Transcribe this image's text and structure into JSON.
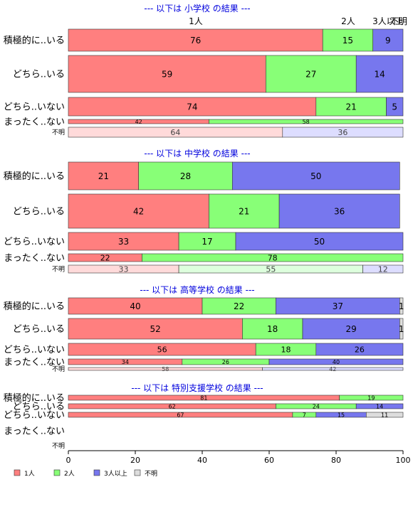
{
  "colors": {
    "one": "#FF7F7F",
    "two": "#88FF77",
    "three": "#7777EE",
    "unknown": "#DDDDDD",
    "title": "#0000DD",
    "one_light": "#FFDADA",
    "two_light": "#DDFFDD",
    "three_light": "#DDDDFF",
    "unknown_light": "#EEEEEE"
  },
  "chart_data": {
    "type": "bar",
    "orientation": "horizontal",
    "stacked": true,
    "xlim": [
      0,
      100
    ],
    "xticks": [
      "0",
      "20",
      "40",
      "60",
      "80",
      "100"
    ],
    "header_labels": [
      "1人",
      "2人",
      "3人以上",
      "不明"
    ],
    "legend": {
      "placement": "bottom-left",
      "items": [
        "1人",
        "2人",
        "3人以上",
        "不明"
      ]
    },
    "row_labels": [
      "積極的に..いる",
      "どちら..いる",
      "どちら..いない",
      "まったく..ない",
      "不明"
    ],
    "panels": [
      {
        "title": "--- 以下は 小学校 の結果 ---",
        "rows": [
          {
            "label": "積極的に..いる",
            "values": [
              76,
              15,
              9,
              0
            ]
          },
          {
            "label": "どちら..いる",
            "values": [
              59,
              27,
              14,
              0
            ]
          },
          {
            "label": "どちら..いない",
            "values": [
              74,
              21,
              5,
              0
            ]
          },
          {
            "label": "まったく..ない",
            "values": [
              42,
              58,
              0,
              0
            ]
          },
          {
            "label": "不明",
            "values": [
              64,
              0,
              36,
              0
            ]
          }
        ]
      },
      {
        "title": "--- 以下は 中学校 の結果 ---",
        "rows": [
          {
            "label": "積極的に..いる",
            "values": [
              21,
              28,
              50,
              0
            ]
          },
          {
            "label": "どちら..いる",
            "values": [
              42,
              21,
              36,
              0
            ]
          },
          {
            "label": "どちら..いない",
            "values": [
              33,
              17,
              50,
              0
            ]
          },
          {
            "label": "まったく..ない",
            "values": [
              22,
              78,
              0,
              0
            ]
          },
          {
            "label": "不明",
            "values": [
              33,
              55,
              12,
              0
            ]
          }
        ]
      },
      {
        "title": "--- 以下は 高等学校 の結果 ---",
        "rows": [
          {
            "label": "積極的に..いる",
            "values": [
              40,
              22,
              37,
              1
            ]
          },
          {
            "label": "どちら..いる",
            "values": [
              52,
              18,
              29,
              1
            ]
          },
          {
            "label": "どちら..いない",
            "values": [
              56,
              18,
              26,
              0
            ]
          },
          {
            "label": "まったく..ない",
            "values": [
              34,
              26,
              40,
              0
            ]
          },
          {
            "label": "不明",
            "values": [
              58,
              0,
              42,
              0
            ]
          }
        ]
      },
      {
        "title": "--- 以下は 特別支援学校 の結果 ---",
        "rows": [
          {
            "label": "積極的に..いる",
            "values": [
              81,
              19,
              0,
              0
            ]
          },
          {
            "label": "どちら..いる",
            "values": [
              62,
              24,
              14,
              0
            ]
          },
          {
            "label": "どちら..いない",
            "values": [
              67,
              7,
              15,
              11
            ]
          },
          {
            "label": "まったく..ない",
            "values": [
              0,
              0,
              0,
              0
            ]
          },
          {
            "label": "不明",
            "values": [
              0,
              0,
              0,
              0
            ]
          }
        ]
      }
    ]
  }
}
